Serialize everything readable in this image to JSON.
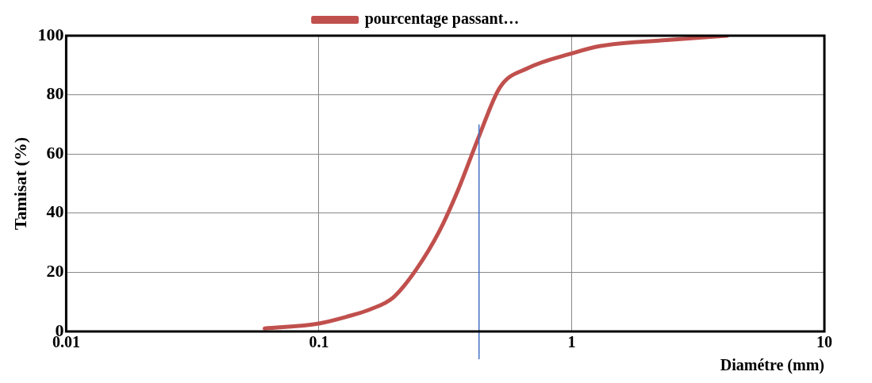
{
  "chart_data": {
    "type": "line",
    "xlabel": "Diamétre (mm)",
    "ylabel": "Tamisat (%)",
    "log": "x",
    "xlim": [
      0.01,
      10
    ],
    "xticks": [
      0.01,
      0.1,
      1,
      10
    ],
    "ylim": [
      0,
      100
    ],
    "yticks": [
      0,
      20,
      40,
      60,
      80,
      100
    ],
    "grid": true,
    "legend": "top",
    "marker": "none",
    "line_style": "solid",
    "ref_lines": [
      {
        "axis": "x",
        "value": 0.43,
        "label": null,
        "color": "#4472c4"
      }
    ],
    "series": [
      {
        "name": "pourcentage passant…",
        "color": "#c0504d",
        "x": [
          0.061,
          0.1,
          0.129,
          0.16,
          0.197,
          0.243,
          0.3,
          0.356,
          0.43,
          0.52,
          0.67,
          1,
          1.3,
          2.38,
          4.12
        ],
        "values": [
          1,
          2.7,
          5,
          7.5,
          11.5,
          21,
          34,
          48,
          66,
          82.5,
          89,
          94,
          96.5,
          98.5,
          100
        ]
      }
    ]
  }
}
